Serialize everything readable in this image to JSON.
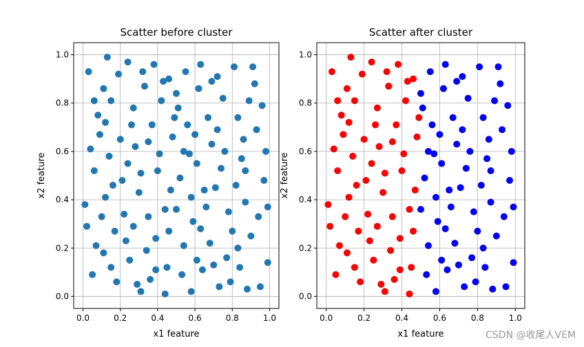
{
  "chart_data": [
    {
      "type": "scatter",
      "title": "Scatter before cluster",
      "xlabel": "x1 feature",
      "ylabel": "x2 feature",
      "xlim": [
        -0.05,
        1.05
      ],
      "ylim": [
        -0.05,
        1.05
      ],
      "grid": true,
      "xticks": [
        "0.0",
        "0.2",
        "0.4",
        "0.6",
        "0.8",
        "1.0"
      ],
      "yticks": [
        "0.0",
        "0.2",
        "0.4",
        "0.6",
        "0.8",
        "1.0"
      ],
      "colors": [
        "#1f77b4"
      ],
      "colored_by_cluster": false
    },
    {
      "type": "scatter",
      "title": "Scatter after cluster",
      "xlabel": "x1 feature",
      "ylabel": "x2 feature",
      "xlim": [
        -0.05,
        1.05
      ],
      "ylim": [
        -0.05,
        1.05
      ],
      "grid": true,
      "xticks": [
        "0.0",
        "0.2",
        "0.4",
        "0.6",
        "0.8",
        "1.0"
      ],
      "yticks": [
        "0.0",
        "0.2",
        "0.4",
        "0.6",
        "0.8",
        "1.0"
      ],
      "colors": [
        "#ff0000",
        "#0000ff"
      ],
      "colored_by_cluster": true
    }
  ],
  "points": [
    [
      0.03,
      0.93
    ],
    [
      0.12,
      0.41
    ],
    [
      0.27,
      0.78
    ],
    [
      0.45,
      0.12
    ],
    [
      0.61,
      0.55
    ],
    [
      0.88,
      0.03
    ],
    [
      0.72,
      0.91
    ],
    [
      0.35,
      0.33
    ],
    [
      0.09,
      0.67
    ],
    [
      0.54,
      0.21
    ],
    [
      0.97,
      0.48
    ],
    [
      0.18,
      0.06
    ],
    [
      0.41,
      0.59
    ],
    [
      0.66,
      0.37
    ],
    [
      0.83,
      0.74
    ],
    [
      0.24,
      0.97
    ],
    [
      0.5,
      0.84
    ],
    [
      0.77,
      0.16
    ],
    [
      0.02,
      0.29
    ],
    [
      0.31,
      0.51
    ],
    [
      0.58,
      0.02
    ],
    [
      0.92,
      0.88
    ],
    [
      0.15,
      0.81
    ],
    [
      0.47,
      0.44
    ],
    [
      0.69,
      0.63
    ],
    [
      0.36,
      0.07
    ],
    [
      0.8,
      0.27
    ],
    [
      0.06,
      0.52
    ],
    [
      0.63,
      0.96
    ],
    [
      0.22,
      0.34
    ],
    [
      0.99,
      0.14
    ],
    [
      0.43,
      0.89
    ],
    [
      0.71,
      0.45
    ],
    [
      0.11,
      0.18
    ],
    [
      0.56,
      0.71
    ],
    [
      0.28,
      0.62
    ],
    [
      0.85,
      0.57
    ],
    [
      0.39,
      0.24
    ],
    [
      0.64,
      0.11
    ],
    [
      0.19,
      0.92
    ],
    [
      0.93,
      0.69
    ],
    [
      0.05,
      0.09
    ],
    [
      0.48,
      0.66
    ],
    [
      0.75,
      0.82
    ],
    [
      0.33,
      0.87
    ],
    [
      0.59,
      0.31
    ],
    [
      0.87,
      0.39
    ],
    [
      0.14,
      0.58
    ],
    [
      0.44,
      0.01
    ],
    [
      0.68,
      0.22
    ],
    [
      0.25,
      0.15
    ],
    [
      0.96,
      0.79
    ],
    [
      0.08,
      0.75
    ],
    [
      0.52,
      0.49
    ],
    [
      0.79,
      0.06
    ],
    [
      0.37,
      0.71
    ],
    [
      0.62,
      0.86
    ],
    [
      0.17,
      0.27
    ],
    [
      0.9,
      0.25
    ],
    [
      0.3,
      0.43
    ],
    [
      0.55,
      0.93
    ],
    [
      0.01,
      0.38
    ],
    [
      0.74,
      0.53
    ],
    [
      0.42,
      0.81
    ],
    [
      0.84,
      0.12
    ],
    [
      0.21,
      0.48
    ],
    [
      0.67,
      0.74
    ],
    [
      0.98,
      0.6
    ],
    [
      0.13,
      0.99
    ],
    [
      0.5,
      0.36
    ],
    [
      0.34,
      0.19
    ],
    [
      0.81,
      0.95
    ],
    [
      0.07,
      0.21
    ],
    [
      0.6,
      0.67
    ],
    [
      0.26,
      0.71
    ],
    [
      0.94,
      0.33
    ],
    [
      0.46,
      0.27
    ],
    [
      0.73,
      0.04
    ],
    [
      0.16,
      0.46
    ],
    [
      0.53,
      0.09
    ],
    [
      0.89,
      0.81
    ],
    [
      0.38,
      0.96
    ],
    [
      0.65,
      0.44
    ],
    [
      0.04,
      0.61
    ],
    [
      0.29,
      0.05
    ],
    [
      0.78,
      0.35
    ],
    [
      0.49,
      0.74
    ],
    [
      0.11,
      0.86
    ],
    [
      0.57,
      0.59
    ],
    [
      0.86,
      0.65
    ],
    [
      0.23,
      0.23
    ],
    [
      0.7,
      0.13
    ],
    [
      0.4,
      0.52
    ],
    [
      0.95,
      0.04
    ],
    [
      0.2,
      0.65
    ],
    [
      0.63,
      0.28
    ],
    [
      0.32,
      0.93
    ],
    [
      0.82,
      0.46
    ],
    [
      0.1,
      0.33
    ],
    [
      0.51,
      0.78
    ],
    [
      0.44,
      0.36
    ],
    [
      0.76,
      0.6
    ],
    [
      0.27,
      0.29
    ],
    [
      0.91,
      0.95
    ],
    [
      0.06,
      0.81
    ],
    [
      0.58,
      0.41
    ],
    [
      0.35,
      0.64
    ],
    [
      0.69,
      0.89
    ],
    [
      0.15,
      0.12
    ],
    [
      0.83,
      0.2
    ],
    [
      0.46,
      0.9
    ],
    [
      0.72,
      0.69
    ],
    [
      0.24,
      0.55
    ],
    [
      0.99,
      0.37
    ],
    [
      0.39,
      0.11
    ],
    [
      0.61,
      0.15
    ],
    [
      0.12,
      0.72
    ],
    [
      0.87,
      0.52
    ],
    [
      0.31,
      0.02
    ],
    [
      0.54,
      0.6
    ]
  ],
  "watermark": "CSDN @收尾人VEM"
}
